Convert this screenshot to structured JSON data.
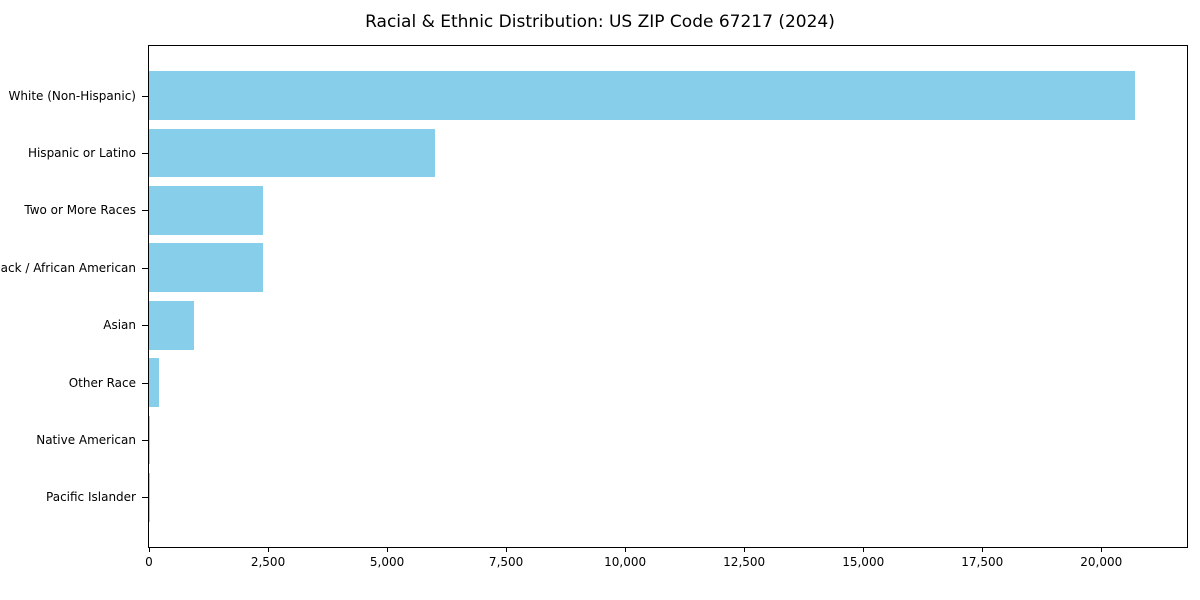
{
  "chart_data": {
    "type": "bar",
    "orientation": "horizontal",
    "title": "Racial & Ethnic Distribution: US ZIP Code 67217 (2024)",
    "categories": [
      "White (Non-Hispanic)",
      "Hispanic or Latino",
      "Two or More Races",
      "Black / African American",
      "Asian",
      "Other Race",
      "Native American",
      "Pacific Islander"
    ],
    "values": [
      20700,
      6000,
      2400,
      2390,
      950,
      210,
      30,
      10
    ],
    "bar_color": "#87CEEB",
    "xlabel": "",
    "ylabel": "",
    "xlim": [
      0,
      21800
    ],
    "xticks": [
      {
        "value": 0,
        "label": "0"
      },
      {
        "value": 2500,
        "label": "2,500"
      },
      {
        "value": 5000,
        "label": "5,000"
      },
      {
        "value": 7500,
        "label": "7,500"
      },
      {
        "value": 10000,
        "label": "10,000"
      },
      {
        "value": 12500,
        "label": "12,500"
      },
      {
        "value": 15000,
        "label": "15,000"
      },
      {
        "value": 17500,
        "label": "17,500"
      },
      {
        "value": 20000,
        "label": "20,000"
      }
    ],
    "grid": false,
    "legend": "none",
    "background_color": "#ffffff"
  }
}
